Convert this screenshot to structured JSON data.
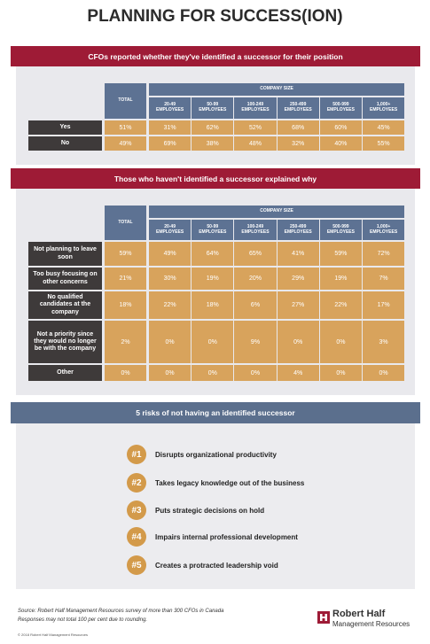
{
  "title": "PLANNING FOR SUCCESS(ION)",
  "section1": {
    "banner": "CFOs reported whether they've identified a successor for their position",
    "table": {
      "total_header": "TOTAL",
      "group_header": "COMPANY SIZE",
      "columns": [
        "20-49 EMPLOYEES",
        "50-99 EMPLOYEES",
        "100-249 EMPLOYEES",
        "250-499 EMPLOYEES",
        "500-999 EMPLOYEES",
        "1,000+ EMPLOYEES"
      ],
      "rows": [
        {
          "label": "Yes",
          "cells": [
            "51%",
            "31%",
            "62%",
            "52%",
            "68%",
            "60%",
            "45%"
          ]
        },
        {
          "label": "No",
          "cells": [
            "49%",
            "69%",
            "38%",
            "48%",
            "32%",
            "40%",
            "55%"
          ]
        }
      ]
    }
  },
  "section2": {
    "banner": "Those who haven't identified a successor explained why",
    "table": {
      "total_header": "TOTAL",
      "group_header": "COMPANY SIZE",
      "columns": [
        "20-49 EMPLOYEES",
        "50-99 EMPLOYEES",
        "100-249 EMPLOYEES",
        "250-499 EMPLOYEES",
        "500-999 EMPLOYEES",
        "1,000+ EMPLOYEES"
      ],
      "rows": [
        {
          "label": "Not planning to leave soon",
          "cells": [
            "59%",
            "49%",
            "64%",
            "65%",
            "41%",
            "59%",
            "72%"
          ]
        },
        {
          "label": "Too busy focusing on other concerns",
          "cells": [
            "21%",
            "30%",
            "19%",
            "20%",
            "29%",
            "19%",
            "7%"
          ]
        },
        {
          "label": "No qualified candidates at the company",
          "cells": [
            "18%",
            "22%",
            "18%",
            "6%",
            "27%",
            "22%",
            "17%"
          ]
        },
        {
          "label": "Not a priority since they would no longer be with the company",
          "cells": [
            "2%",
            "0%",
            "0%",
            "9%",
            "0%",
            "0%",
            "3%"
          ]
        },
        {
          "label": "Other",
          "cells": [
            "0%",
            "0%",
            "0%",
            "0%",
            "4%",
            "0%",
            "0%"
          ]
        }
      ]
    }
  },
  "section3": {
    "banner": "5 risks of not having an identified successor",
    "risks": [
      {
        "number": "#1",
        "text": "Disrupts organizational productivity"
      },
      {
        "number": "#2",
        "text": "Takes legacy knowledge out of the business"
      },
      {
        "number": "#3",
        "text": "Puts strategic decisions on hold"
      },
      {
        "number": "#4",
        "text": "Impairs internal professional development"
      },
      {
        "number": "#5",
        "text": "Creates a protracted leadership void"
      }
    ]
  },
  "footer": {
    "source": "Source: Robert Half Management Resources survey of more than 300 CFOs in Canada",
    "note": "Responses may not total 100 per cent due to rounding.",
    "copyright": "© 2018 Robert Half Management Resources",
    "brand": "Robert Half",
    "brand_sub": "Management Resources"
  }
}
